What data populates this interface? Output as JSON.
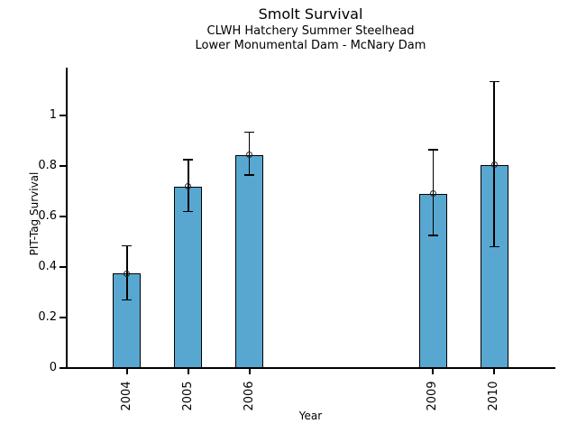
{
  "chart_data": {
    "type": "bar",
    "title": "Smolt Survival",
    "subtitle1": "CLWH Hatchery Summer Steelhead",
    "subtitle2": "Lower Monumental Dam - McNary Dam",
    "xlabel": "Year",
    "ylabel": "PIT-Tag Survival",
    "categories": [
      "2004",
      "2005",
      "2006",
      "2009",
      "2010"
    ],
    "x_values": [
      2004,
      2005,
      2006,
      2009,
      2010
    ],
    "values": [
      0.375,
      0.72,
      0.845,
      0.69,
      0.805
    ],
    "error_low": [
      0.27,
      0.62,
      0.765,
      0.525,
      0.48
    ],
    "error_high": [
      0.485,
      0.825,
      0.935,
      0.865,
      1.135
    ],
    "yticks": [
      0,
      0.2,
      0.4,
      0.6,
      0.8,
      1
    ],
    "ytick_labels": [
      "0",
      "0.2",
      "0.4",
      "0.6",
      "0.8",
      "1"
    ],
    "xlim": [
      2003,
      2011
    ],
    "ylim": [
      0,
      1.19
    ],
    "grid": false,
    "legend": false,
    "marker": "open-circle",
    "error_bars": true,
    "bar_color": "#58A7D0",
    "bar_edge_color": "#000000",
    "error_color": "#000000",
    "text_color": "#000000",
    "background_color": "#FFFFFF"
  }
}
